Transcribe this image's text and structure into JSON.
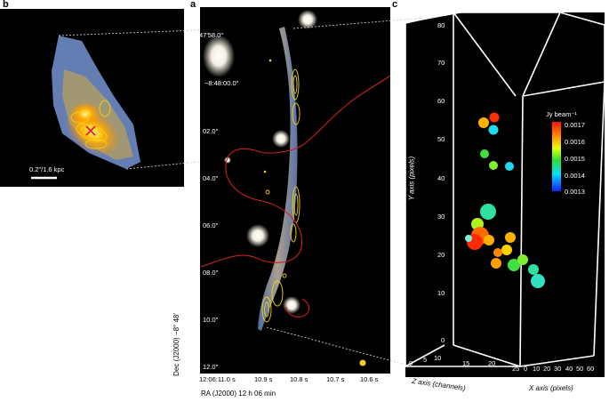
{
  "figure": {
    "panels": [
      {
        "id": "b",
        "label": "b"
      },
      {
        "id": "a",
        "label": "a"
      },
      {
        "id": "c",
        "label": "c"
      }
    ],
    "panel_b": {
      "scale_bar": "0.2″/1.6 kpc"
    },
    "panel_a": {
      "dec_ticks": [
        "47′58.0″",
        "−8:48:00.0″",
        "02.0″",
        "04.0″",
        "06.0″",
        "08.0″",
        "10.0″",
        "12.0″"
      ],
      "ra_ticks": [
        "12:06:11.0 s",
        "10.9 s",
        "10.8 s",
        "10.7 s",
        "10.6 s"
      ],
      "dec_axis_label": "Dec (J2000) −8° 48′",
      "ra_axis_label": "RA (J2000) 12 h 06 min"
    },
    "panel_c": {
      "y_axis_label": "Y axis (pixels)",
      "z_axis_label": "Z axis (channels)",
      "x_axis_label": "X axis (pixels)",
      "y_ticks": [
        "80",
        "70",
        "60",
        "50",
        "40",
        "30",
        "20",
        "10",
        "0"
      ],
      "z_ticks": [
        "0",
        "5",
        "10",
        "15",
        "20",
        "25"
      ],
      "x_ticks": [
        "0",
        "10",
        "20",
        "30",
        "40",
        "50",
        "60"
      ],
      "colorbar": {
        "label": "Jy beam⁻¹",
        "ticks": [
          "0.0017",
          "0.0016",
          "0.0015",
          "0.0014",
          "0.0013"
        ]
      }
    },
    "colors": {
      "contour": "#f2d21b",
      "curve": "#c8201e",
      "cross": "#e0202c"
    }
  }
}
